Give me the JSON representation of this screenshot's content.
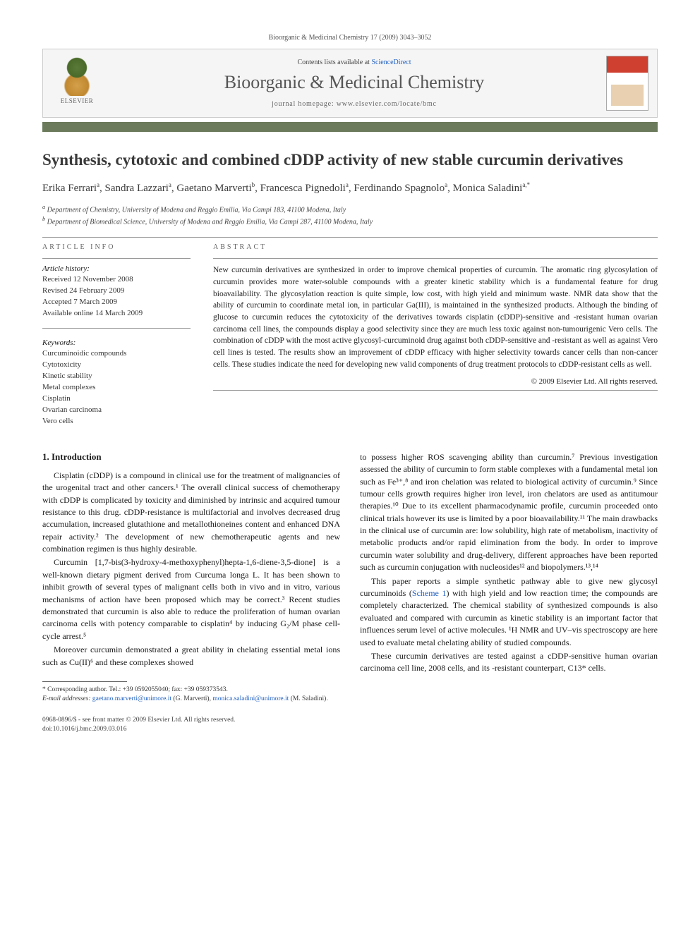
{
  "running_header": "Bioorganic & Medicinal Chemistry 17 (2009) 3043–3052",
  "banner": {
    "contents_prefix": "Contents lists available at ",
    "contents_link": "ScienceDirect",
    "journal_name": "Bioorganic & Medicinal Chemistry",
    "homepage_prefix": "journal homepage: ",
    "homepage_url": "www.elsevier.com/locate/bmc",
    "publisher_label": "ELSEVIER"
  },
  "colors": {
    "bar": "#6b7a5a",
    "link": "#2060c0",
    "title": "#3a3a3a",
    "text": "#1a1a1a"
  },
  "title": "Synthesis, cytotoxic and combined cDDP activity of new stable curcumin derivatives",
  "authors_html": "Erika Ferrari<sup>a</sup>, Sandra Lazzari<sup>a</sup>, Gaetano Marverti<sup>b</sup>, Francesca Pignedoli<sup>a</sup>, Ferdinando Spagnolo<sup>a</sup>, Monica Saladini<sup>a,*</sup>",
  "affiliations": {
    "a": "Department of Chemistry, University of Modena and Reggio Emilia, Via Campi 183, 41100 Modena, Italy",
    "b": "Department of Biomedical Science, University of Modena and Reggio Emilia, Via Campi 287, 41100 Modena, Italy"
  },
  "article_info_label": "ARTICLE INFO",
  "abstract_label": "ABSTRACT",
  "history": {
    "label": "Article history:",
    "received": "Received 12 November 2008",
    "revised": "Revised 24 February 2009",
    "accepted": "Accepted 7 March 2009",
    "online": "Available online 14 March 2009"
  },
  "keywords": {
    "label": "Keywords:",
    "items": [
      "Curcuminoidic compounds",
      "Cytotoxicity",
      "Kinetic stability",
      "Metal complexes",
      "Cisplatin",
      "Ovarian carcinoma",
      "Vero cells"
    ]
  },
  "abstract": "New curcumin derivatives are synthesized in order to improve chemical properties of curcumin. The aromatic ring glycosylation of curcumin provides more water-soluble compounds with a greater kinetic stability which is a fundamental feature for drug bioavailability. The glycosylation reaction is quite simple, low cost, with high yield and minimum waste. NMR data show that the ability of curcumin to coordinate metal ion, in particular Ga(III), is maintained in the synthesized products. Although the binding of glucose to curcumin reduces the cytotoxicity of the derivatives towards cisplatin (cDDP)-sensitive and -resistant human ovarian carcinoma cell lines, the compounds display a good selectivity since they are much less toxic against non-tumourigenic Vero cells. The combination of cDDP with the most active glycosyl-curcuminoid drug against both cDDP-sensitive and -resistant as well as against Vero cell lines is tested. The results show an improvement of cDDP efficacy with higher selectivity towards cancer cells than non-cancer cells. These studies indicate the need for developing new valid components of drug treatment protocols to cDDP-resistant cells as well.",
  "copyright": "© 2009 Elsevier Ltd. All rights reserved.",
  "section1_heading": "1. Introduction",
  "paras": {
    "p1": "Cisplatin (cDDP) is a compound in clinical use for the treatment of malignancies of the urogenital tract and other cancers.¹ The overall clinical success of chemotherapy with cDDP is complicated by toxicity and diminished by intrinsic and acquired tumour resistance to this drug. cDDP-resistance is multifactorial and involves decreased drug accumulation, increased glutathione and metallothioneines content and enhanced DNA repair activity.² The development of new chemotherapeutic agents and new combination regimen is thus highly desirable.",
    "p2": "Curcumin [1,7-bis(3-hydroxy-4-methoxyphenyl)hepta-1,6-diene-3,5-dione] is a well-known dietary pigment derived from Curcuma longa L. It has been shown to inhibit growth of several types of malignant cells both in vivo and in vitro, various mechanisms of action have been proposed which may be correct.³ Recent studies demonstrated that curcumin is also able to reduce the proliferation of human ovarian carcinoma cells with potency comparable to cisplatin⁴ by inducing G₂/M phase cell-cycle arrest.⁵",
    "p3": "Moreover curcumin demonstrated a great ability in chelating essential metal ions such as Cu(II)⁶ and these complexes showed",
    "p4": "to possess higher ROS scavenging ability than curcumin.⁷ Previous investigation assessed the ability of curcumin to form stable complexes with a fundamental metal ion such as Fe³⁺,⁸ and iron chelation was related to biological activity of curcumin.⁹ Since tumour cells growth requires higher iron level, iron chelators are used as antitumour therapies.¹⁰ Due to its excellent pharmacodynamic profile, curcumin proceeded onto clinical trials however its use is limited by a poor bioavailability.¹¹ The main drawbacks in the clinical use of curcumin are: low solubility, high rate of metabolism, inactivity of metabolic products and/or rapid elimination from the body. In order to improve curcumin water solubility and drug-delivery, different approaches have been reported such as curcumin conjugation with nucleosides¹² and biopolymers.¹³,¹⁴",
    "p5_pre": "This paper reports a simple synthetic pathway able to give new glycosyl curcuminoids (",
    "p5_link": "Scheme 1",
    "p5_post": ") with high yield and low reaction time; the compounds are completely characterized. The chemical stability of synthesized compounds is also evaluated and compared with curcumin as kinetic stability is an important factor that influences serum level of active molecules. ¹H NMR and UV–vis spectroscopy are here used to evaluate metal chelating ability of studied compounds.",
    "p6": "These curcumin derivatives are tested against a cDDP-sensitive human ovarian carcinoma cell line, 2008 cells, and its -resistant counterpart, C13* cells."
  },
  "footnotes": {
    "corr": "* Corresponding author. Tel.: +39 0592055040; fax: +39 059373543.",
    "email_label": "E-mail addresses:",
    "email1": "gaetano.marverti@unimore.it",
    "email1_who": " (G. Marverti), ",
    "email2": "monica.saladini@unimore.it",
    "email2_who": " (M. Saladini)."
  },
  "footer": {
    "line1": "0968-0896/$ - see front matter © 2009 Elsevier Ltd. All rights reserved.",
    "line2": "doi:10.1016/j.bmc.2009.03.016"
  }
}
